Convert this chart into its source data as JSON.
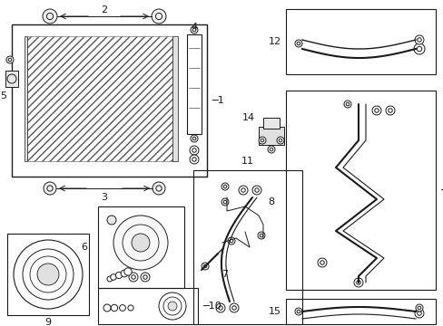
{
  "bg_color": "#ffffff",
  "line_color": "#1a1a1a",
  "fig_width": 4.89,
  "fig_height": 3.6,
  "dpi": 100,
  "font_size": 8,
  "lw": 0.7
}
